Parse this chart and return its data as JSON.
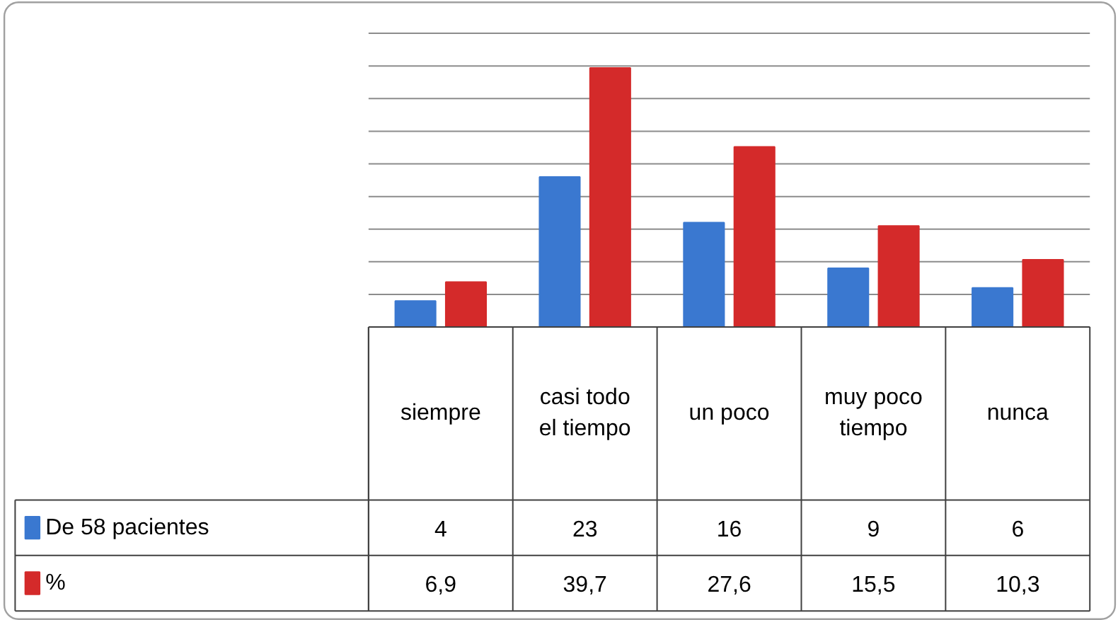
{
  "chart_data": {
    "type": "bar",
    "categories": [
      "siempre",
      "casi todo el tiempo",
      "un poco",
      "muy poco tiempo",
      "nunca"
    ],
    "series": [
      {
        "name": "De 58 pacientes",
        "color": "#3a78d0",
        "values": [
          4,
          23,
          16,
          9,
          6
        ],
        "value_labels": [
          "4",
          "23",
          "16",
          "9",
          "6"
        ]
      },
      {
        "name": "%",
        "color": "#d42a2a",
        "values": [
          6.9,
          39.7,
          27.6,
          15.5,
          10.3
        ],
        "value_labels": [
          "6,9",
          "39,7",
          "27,6",
          "15,5",
          "10,3"
        ]
      }
    ],
    "ylim": [
      0,
      45
    ],
    "yticks": [
      {
        "value": 0,
        "label": null
      },
      {
        "value": 5,
        "label": null
      },
      {
        "value": 10,
        "label": null
      },
      {
        "value": 15,
        "label": null
      },
      {
        "value": 20,
        "label": null
      },
      {
        "value": 25,
        "label": null
      },
      {
        "value": 30,
        "label": null
      },
      {
        "value": 35,
        "label": null
      },
      {
        "value": 40,
        "label": null
      },
      {
        "value": 45,
        "label": null
      }
    ],
    "grid": "y",
    "legend": "bottom left",
    "tick_labels": false
  }
}
